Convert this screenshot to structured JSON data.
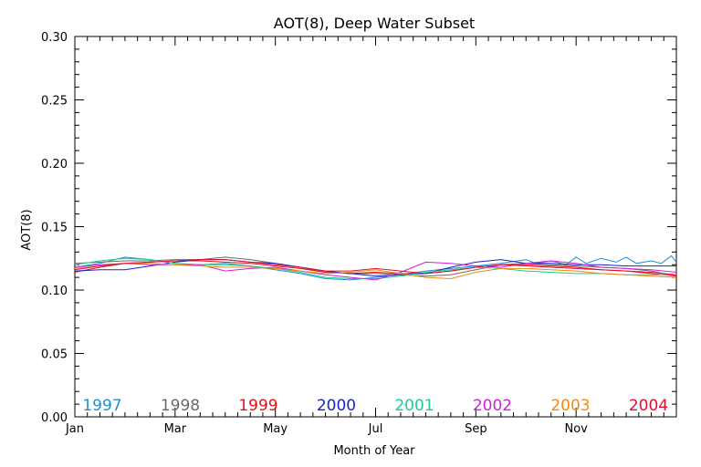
{
  "chart_data": {
    "type": "line",
    "title": "AOT(8), Deep Water Subset",
    "xlabel": "Month of Year",
    "ylabel": "AOT(8)",
    "ylim": [
      0.0,
      0.3
    ],
    "yticks": [
      "0.00",
      "0.05",
      "0.10",
      "0.15",
      "0.20",
      "0.25",
      "0.30"
    ],
    "xlim": [
      1,
      13
    ],
    "xticks": [
      {
        "label": "Jan",
        "x": 1
      },
      {
        "label": "Mar",
        "x": 3
      },
      {
        "label": "May",
        "x": 5
      },
      {
        "label": "Jul",
        "x": 7
      },
      {
        "label": "Sep",
        "x": 9
      },
      {
        "label": "Nov",
        "x": 11
      }
    ],
    "grid": false,
    "legend_placement": "bottom",
    "series": [
      {
        "name": "1997",
        "color": "#1f8fd0",
        "x": [
          1,
          1.5,
          2,
          2.5,
          3,
          3.5,
          4,
          4.5,
          5,
          5.5,
          6,
          6.5,
          7,
          7.5,
          8,
          8.5,
          9,
          9.5,
          10,
          10.2,
          10.5,
          10.8,
          11,
          11.2,
          11.5,
          11.8,
          12,
          12.2,
          12.5,
          12.7,
          12.9,
          13
        ],
        "y": [
          0.118,
          0.121,
          0.126,
          0.124,
          0.121,
          0.12,
          0.121,
          0.119,
          0.116,
          0.113,
          0.109,
          0.108,
          0.11,
          0.112,
          0.115,
          0.117,
          0.119,
          0.121,
          0.124,
          0.121,
          0.123,
          0.12,
          0.126,
          0.121,
          0.125,
          0.122,
          0.126,
          0.121,
          0.123,
          0.121,
          0.127,
          0.122
        ]
      },
      {
        "name": "1998",
        "color": "#6a6a6a",
        "x": [
          1,
          1.5,
          2,
          2.5,
          3,
          3.5,
          4,
          4.5,
          5,
          5.5,
          6,
          6.5,
          7,
          7.5,
          8,
          8.5,
          9,
          9.5,
          10,
          10.5,
          11,
          11.5,
          12,
          12.5,
          13
        ],
        "y": [
          0.121,
          0.122,
          0.123,
          0.123,
          0.124,
          0.124,
          0.126,
          0.124,
          0.121,
          0.118,
          0.114,
          0.113,
          0.113,
          0.112,
          0.111,
          0.112,
          0.116,
          0.12,
          0.121,
          0.12,
          0.119,
          0.118,
          0.117,
          0.115,
          0.111
        ]
      },
      {
        "name": "1999",
        "color": "#e0101a",
        "x": [
          1,
          1.5,
          2,
          2.5,
          3,
          3.5,
          4,
          4.5,
          5,
          5.5,
          6,
          6.5,
          7,
          7.5,
          8,
          8.5,
          9,
          9.5,
          10,
          10.5,
          11,
          11.5,
          12,
          12.5,
          13
        ],
        "y": [
          0.114,
          0.118,
          0.121,
          0.122,
          0.123,
          0.123,
          0.122,
          0.121,
          0.119,
          0.117,
          0.114,
          0.113,
          0.114,
          0.113,
          0.113,
          0.115,
          0.118,
          0.12,
          0.12,
          0.119,
          0.118,
          0.116,
          0.115,
          0.113,
          0.111
        ]
      },
      {
        "name": "2000",
        "color": "#1a22c8",
        "x": [
          1,
          1.5,
          2,
          2.5,
          3,
          3.5,
          4,
          4.5,
          5,
          5.5,
          6,
          6.5,
          7,
          7.5,
          8,
          8.5,
          9,
          9.5,
          10,
          10.5,
          11,
          11.5,
          12,
          12.5,
          13
        ],
        "y": [
          0.115,
          0.116,
          0.116,
          0.119,
          0.122,
          0.124,
          0.124,
          0.122,
          0.121,
          0.118,
          0.115,
          0.113,
          0.111,
          0.112,
          0.113,
          0.118,
          0.122,
          0.124,
          0.121,
          0.121,
          0.12,
          0.12,
          0.119,
          0.119,
          0.119
        ]
      },
      {
        "name": "2001",
        "color": "#18d08a",
        "x": [
          1,
          1.5,
          2,
          2.5,
          3,
          3.5,
          4,
          4.5,
          5,
          5.5,
          6,
          6.5,
          7,
          7.5,
          8,
          8.5,
          9,
          9.5,
          10,
          10.5,
          11,
          11.5,
          12,
          12.5,
          13
        ],
        "y": [
          0.12,
          0.123,
          0.125,
          0.124,
          0.121,
          0.12,
          0.12,
          0.119,
          0.117,
          0.114,
          0.11,
          0.109,
          0.109,
          0.111,
          0.114,
          0.116,
          0.118,
          0.117,
          0.115,
          0.114,
          0.113,
          0.113,
          0.112,
          0.112,
          0.112
        ]
      },
      {
        "name": "2002",
        "color": "#d020d8",
        "x": [
          1,
          1.5,
          2,
          2.5,
          3,
          3.5,
          4,
          4.5,
          5,
          5.5,
          6,
          6.5,
          7,
          7.5,
          8,
          8.5,
          9,
          9.5,
          10,
          10.5,
          11,
          11.5,
          12,
          12.5,
          13
        ],
        "y": [
          0.118,
          0.12,
          0.121,
          0.12,
          0.12,
          0.12,
          0.115,
          0.117,
          0.118,
          0.115,
          0.112,
          0.11,
          0.108,
          0.114,
          0.122,
          0.121,
          0.119,
          0.118,
          0.121,
          0.123,
          0.121,
          0.118,
          0.117,
          0.116,
          0.114
        ]
      },
      {
        "name": "2003",
        "color": "#f08a10",
        "x": [
          1,
          1.5,
          2,
          2.5,
          3,
          3.5,
          4,
          4.5,
          5,
          5.5,
          6,
          6.5,
          7,
          7.5,
          8,
          8.5,
          9,
          9.5,
          10,
          10.5,
          11,
          11.5,
          12,
          12.5,
          13
        ],
        "y": [
          0.117,
          0.119,
          0.121,
          0.121,
          0.12,
          0.119,
          0.118,
          0.118,
          0.117,
          0.115,
          0.113,
          0.114,
          0.116,
          0.113,
          0.11,
          0.109,
          0.114,
          0.117,
          0.117,
          0.116,
          0.115,
          0.113,
          0.112,
          0.111,
          0.11
        ]
      },
      {
        "name": "2004",
        "color": "#e01030",
        "x": [
          1,
          1.5,
          2,
          2.5,
          3,
          3.5,
          4,
          4.5,
          5,
          5.5,
          6,
          6.5,
          7,
          7.5,
          8,
          8.5,
          9,
          9.5,
          10,
          10.5,
          11,
          11.5,
          12,
          12.5,
          13
        ],
        "y": [
          0.116,
          0.119,
          0.121,
          0.122,
          0.123,
          0.124,
          0.124,
          0.122,
          0.12,
          0.118,
          0.115,
          0.115,
          0.117,
          0.115,
          0.113,
          0.115,
          0.118,
          0.12,
          0.119,
          0.118,
          0.117,
          0.116,
          0.115,
          0.114,
          0.112
        ]
      }
    ]
  }
}
